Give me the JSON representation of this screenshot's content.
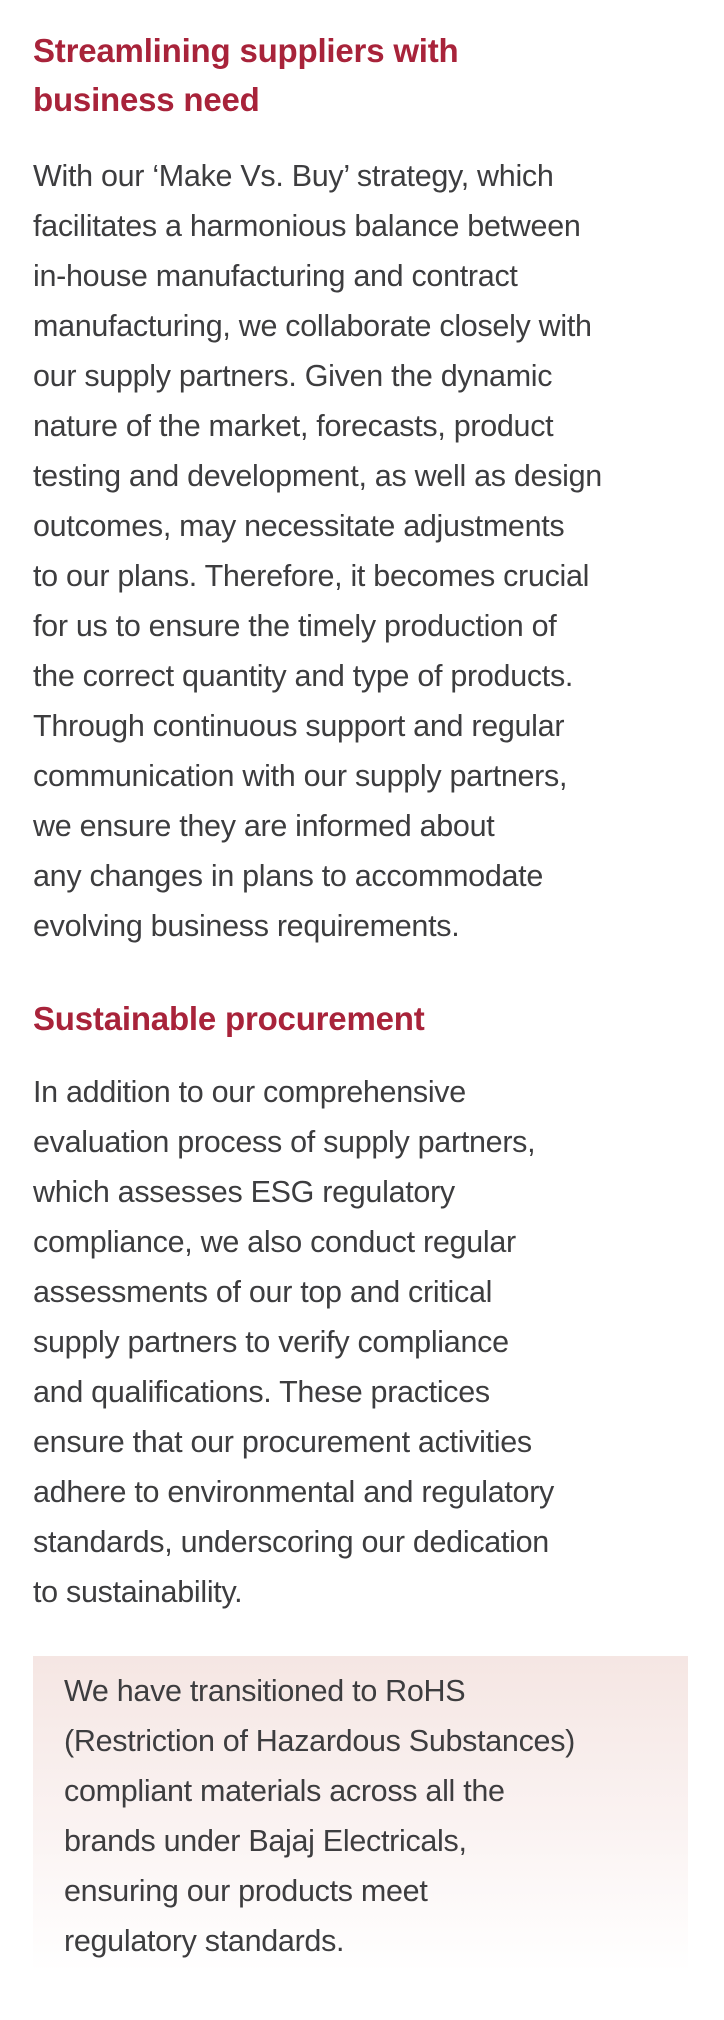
{
  "section_1": {
    "heading_lines": [
      "Streamlining suppliers with",
      "business need"
    ],
    "body_lines": [
      "With our ‘Make Vs. Buy’ strategy, which",
      "facilitates a harmonious balance between",
      "in-house manufacturing and contract",
      "manufacturing, we collaborate closely with",
      "our supply partners. Given the dynamic",
      "nature of the market, forecasts, product",
      "testing and development, as well as design",
      "outcomes, may necessitate adjustments",
      "to our plans. Therefore, it becomes crucial",
      "for us to ensure the timely production of",
      "the correct quantity and type of products.",
      "Through continuous support and regular",
      "communication with our supply partners,",
      "we ensure they are informed about",
      "any changes in plans to accommodate",
      "evolving business requirements."
    ]
  },
  "section_2": {
    "heading": "Sustainable procurement",
    "body_lines": [
      "In addition to our comprehensive",
      "evaluation process of supply partners,",
      "which assesses ESG regulatory",
      "compliance, we also conduct regular",
      "assessments of our top and critical",
      "supply partners to verify compliance",
      "and qualifications. These practices",
      "ensure that our procurement activities",
      "adhere to environmental and regulatory",
      "standards, underscoring our dedication",
      "to sustainability."
    ]
  },
  "callout": {
    "lines": [
      "We have transitioned to RoHS",
      "(Restriction of Hazardous Substances)",
      "compliant materials across all the",
      "brands under Bajaj Electricals,",
      "ensuring our products meet",
      "regulatory standards."
    ]
  },
  "colors": {
    "heading": "#a8233a",
    "body_text": "#3d3d3f",
    "callout_bg": "#f5e6e3"
  }
}
